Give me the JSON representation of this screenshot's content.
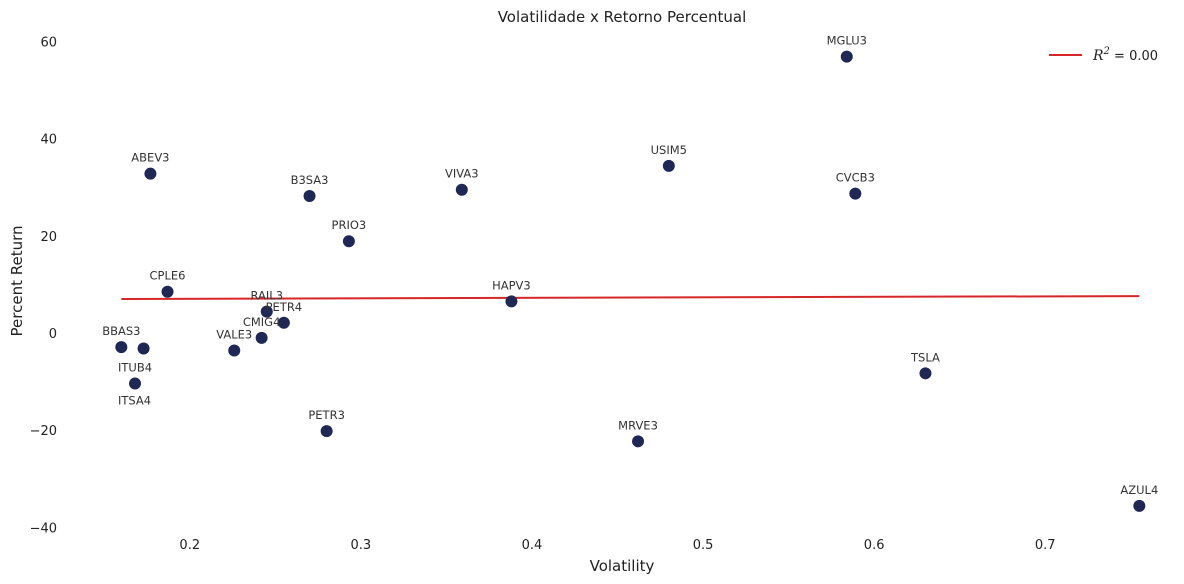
{
  "chart_data": {
    "type": "scatter",
    "title": "Volatilidade x Retorno Percentual",
    "xlabel": "Volatility",
    "ylabel": "Percent Return",
    "xlim": [
      0.13,
      0.77
    ],
    "ylim": [
      -42,
      63
    ],
    "xticks": [
      "0.2",
      "0.3",
      "0.4",
      "0.5",
      "0.6",
      "0.7"
    ],
    "yticks": [
      "−40",
      "−20",
      "0",
      "20",
      "40",
      "60"
    ],
    "grid": false,
    "legend": {
      "position": "top-right",
      "label_base": "R",
      "label_sup": "2",
      "label_rest": " = 0.00"
    },
    "marker_color": "#1f2855",
    "trend_color": "#d62728",
    "trendline": {
      "x": [
        0.16,
        0.755
      ],
      "y": [
        7.0,
        7.6
      ]
    },
    "points": [
      {
        "label": "MGLU3",
        "x": 0.584,
        "y": 56.9
      },
      {
        "label": "ABEV3",
        "x": 0.177,
        "y": 32.8
      },
      {
        "label": "USIM5",
        "x": 0.48,
        "y": 34.4
      },
      {
        "label": "VIVA3",
        "x": 0.359,
        "y": 29.5
      },
      {
        "label": "B3SA3",
        "x": 0.27,
        "y": 28.2
      },
      {
        "label": "CVCB3",
        "x": 0.589,
        "y": 28.7
      },
      {
        "label": "PRIO3",
        "x": 0.293,
        "y": 18.9
      },
      {
        "label": "CPLE6",
        "x": 0.187,
        "y": 8.5
      },
      {
        "label": "HAPV3",
        "x": 0.388,
        "y": 6.5
      },
      {
        "label": "RAIL3",
        "x": 0.245,
        "y": 4.4
      },
      {
        "label": "PETR4",
        "x": 0.255,
        "y": 2.1
      },
      {
        "label": "CMIG4",
        "x": 0.242,
        "y": -1.0
      },
      {
        "label": "VALE3",
        "x": 0.226,
        "y": -3.6
      },
      {
        "label": "BBAS3",
        "x": 0.16,
        "y": -2.9
      },
      {
        "label": "ITSA4",
        "x": 0.173,
        "y": -3.2
      },
      {
        "label": "ITUB4",
        "x": 0.168,
        "y": -10.4
      },
      {
        "label": "TSLA",
        "x": 0.63,
        "y": -8.3
      },
      {
        "label": "PETR3",
        "x": 0.28,
        "y": -20.2
      },
      {
        "label": "MRVE3",
        "x": 0.462,
        "y": -22.3
      },
      {
        "label": "AZUL4",
        "x": 0.755,
        "y": -35.6
      }
    ]
  }
}
